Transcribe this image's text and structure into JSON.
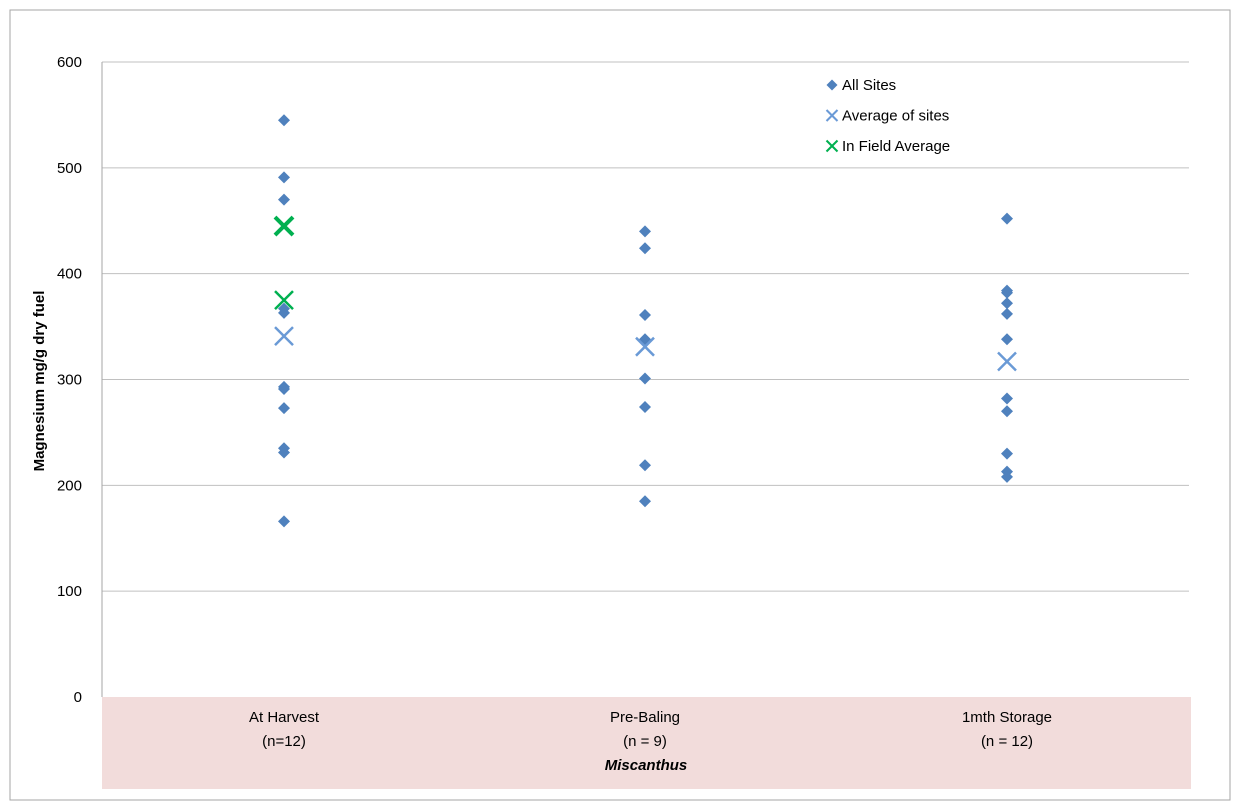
{
  "chart_data": {
    "type": "scatter",
    "title": "",
    "xlabel": "Miscanthus",
    "ylabel": "Magnesium   mg/g dry fuel",
    "ylim": [
      0,
      600
    ],
    "yticks": [
      0,
      100,
      200,
      300,
      400,
      500,
      600
    ],
    "grid": true,
    "legend_position": "top-right",
    "categories": [
      {
        "label": "At Harvest",
        "sublabel": "(n=12)"
      },
      {
        "label": "Pre-Baling",
        "sublabel": "(n = 9)"
      },
      {
        "label": "1mth Storage",
        "sublabel": "(n = 12)"
      }
    ],
    "series": [
      {
        "name": "All Sites",
        "marker": "diamond",
        "color": "#4f81bd",
        "points": [
          {
            "category": "At Harvest",
            "values": [
              545,
              491,
              470,
              367,
              363,
              293,
              291,
              273,
              235,
              231,
              166
            ]
          },
          {
            "category": "Pre-Baling",
            "values": [
              440,
              424,
              361,
              338,
              301,
              274,
              219,
              185
            ]
          },
          {
            "category": "1mth Storage",
            "values": [
              452,
              384,
              382,
              372,
              362,
              338,
              282,
              270,
              230,
              213,
              208
            ]
          }
        ]
      },
      {
        "name": "Average of sites",
        "marker": "x",
        "color": "#6a9ad6",
        "points": [
          {
            "category": "At Harvest",
            "values": [
              341
            ]
          },
          {
            "category": "Pre-Baling",
            "values": [
              331
            ]
          },
          {
            "category": "1mth Storage",
            "values": [
              317
            ]
          }
        ]
      },
      {
        "name": "In Field Average",
        "marker": "x",
        "color": "#00b050",
        "points": [
          {
            "category": "At Harvest",
            "values": [
              445,
              375
            ]
          }
        ]
      }
    ],
    "colors": {
      "category_band": "#f2dcdb",
      "gridline": "#c0c0c0",
      "frame": "#a6a6a6"
    }
  }
}
